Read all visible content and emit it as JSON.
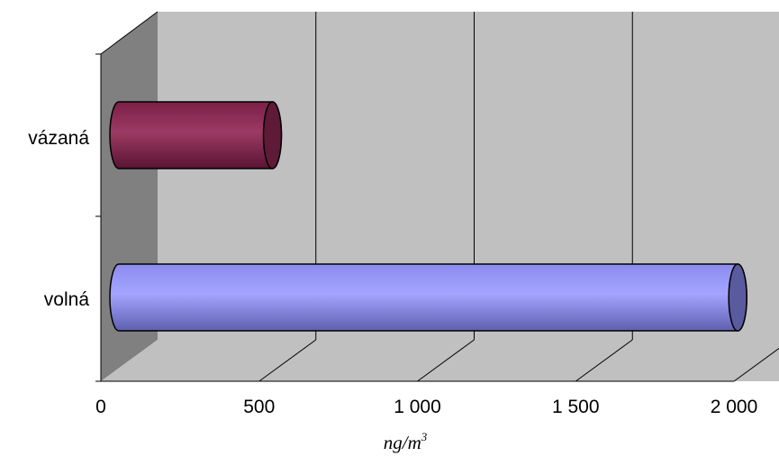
{
  "chart_data": {
    "type": "bar",
    "orientation": "horizontal",
    "style": "3d-cylinder",
    "categories": [
      "vázaná",
      "volná"
    ],
    "values": [
      485,
      1955
    ],
    "bar_colors": [
      "#8b2a55",
      "#9999ff"
    ],
    "xlabel": "ng/m",
    "xlabel_superscript": "3",
    "xlim": [
      0,
      2000
    ],
    "x_ticks": [
      0,
      500,
      1000,
      1500,
      2000
    ],
    "x_tick_labels": [
      "0",
      "500",
      "1 000",
      "1 500",
      "2 000"
    ],
    "grid": "vertical",
    "legend": "none"
  },
  "colors": {
    "back_wall": "#c0c0c0",
    "side_wall": "#808080",
    "floor": "#c0c0c0",
    "outline": "#000000"
  }
}
